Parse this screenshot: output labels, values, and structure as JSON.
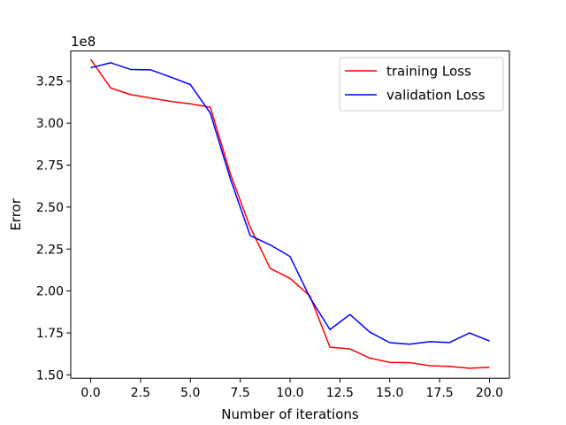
{
  "chart_data": {
    "type": "line",
    "title": "",
    "xlabel": "Number of iterations",
    "ylabel": "Error",
    "y_offset_label": "1e8",
    "y_scale_factor": 100000000,
    "xlim": [
      -1.0,
      21.0
    ],
    "ylim": [
      148000000,
      343000000
    ],
    "grid": false,
    "legend_position": "top-right",
    "x_ticks": [
      0.0,
      2.5,
      5.0,
      7.5,
      10.0,
      12.5,
      15.0,
      17.5,
      20.0
    ],
    "x_tick_labels": [
      "0.0",
      "2.5",
      "5.0",
      "7.5",
      "10.0",
      "12.5",
      "15.0",
      "17.5",
      "20.0"
    ],
    "y_ticks": [
      150000000,
      175000000,
      200000000,
      225000000,
      250000000,
      275000000,
      300000000,
      325000000
    ],
    "y_tick_labels": [
      "1.50",
      "1.75",
      "2.00",
      "2.25",
      "2.50",
      "2.75",
      "3.00",
      "3.25"
    ],
    "x": [
      0,
      1,
      2,
      3,
      4,
      5,
      6,
      7,
      8,
      9,
      10,
      11,
      12,
      13,
      14,
      15,
      16,
      17,
      18,
      19,
      20
    ],
    "series": [
      {
        "name": "training Loss",
        "color": "#ff0000",
        "values": [
          338000000,
          321000000,
          317000000,
          315000000,
          313000000,
          311500000,
          309500000,
          270000000,
          238000000,
          213500000,
          207500000,
          197000000,
          166500000,
          165500000,
          160000000,
          157500000,
          157300000,
          155500000,
          155000000,
          154000000,
          154500000
        ]
      },
      {
        "name": "validation Loss",
        "color": "#0000ff",
        "values": [
          333000000,
          336000000,
          332000000,
          331800000,
          327500000,
          323000000,
          306000000,
          267000000,
          233000000,
          227500000,
          220500000,
          196000000,
          177000000,
          186000000,
          175500000,
          169200000,
          168300000,
          169800000,
          169300000,
          175000000,
          170200000
        ]
      }
    ]
  }
}
